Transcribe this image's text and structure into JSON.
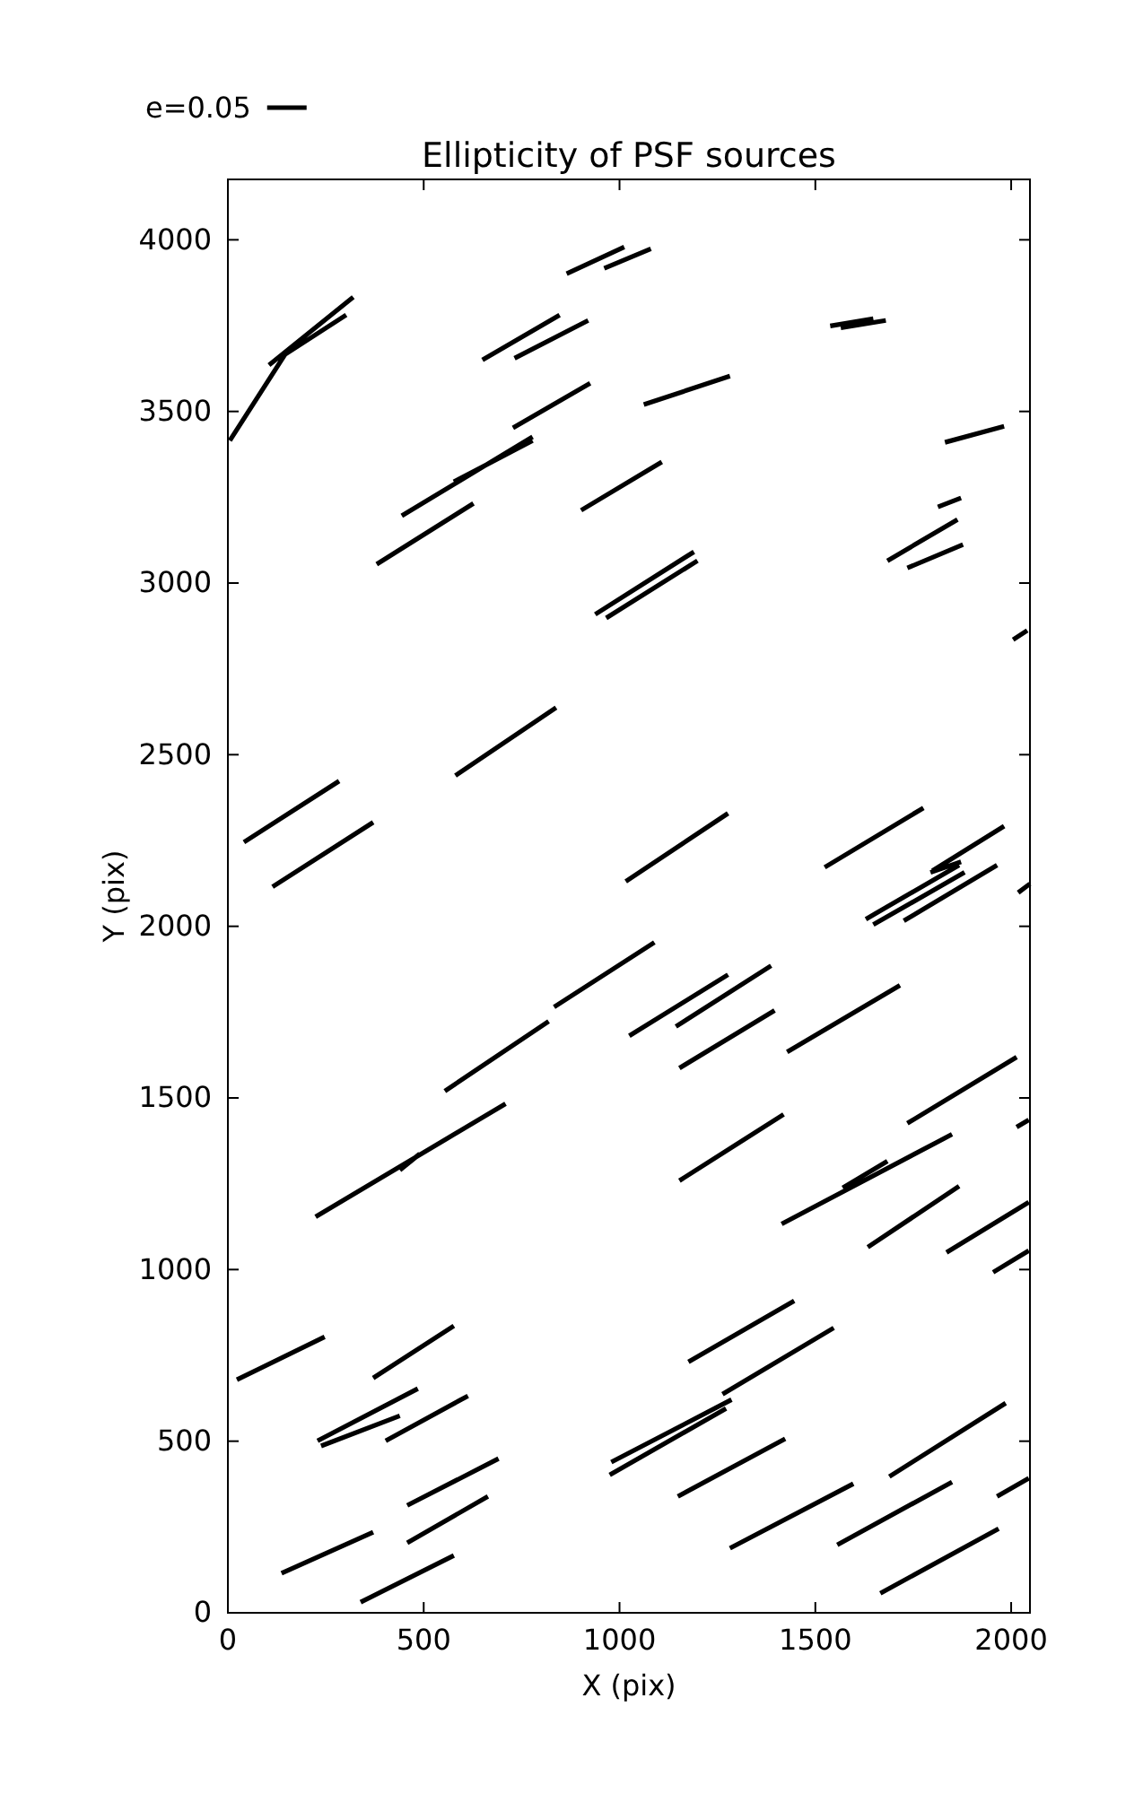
{
  "chart_data": {
    "type": "line",
    "title": "Ellipticity of PSF sources",
    "xlabel": "X (pix)",
    "ylabel": "Y (pix)",
    "xlim": [
      0,
      2048
    ],
    "xticks": [
      0,
      500,
      1000,
      1500,
      2000
    ],
    "ylim": [
      0,
      4176
    ],
    "yticks": [
      0,
      500,
      1000,
      1500,
      2000,
      2500,
      3000,
      3500,
      4000
    ],
    "grid": false,
    "legend": "top left",
    "marker": "none",
    "line_style": "solid",
    "series": [
      {
        "name": "e=0.05",
        "color": "#000000",
        "x": [
          5,
          146,
          null,
          105,
          320,
          null,
          146,
          302,
          null,
          865,
          1012,
          null,
          961,
          1080,
          null,
          650,
          847,
          null,
          732,
          920,
          null,
          1062,
          1282,
          null,
          728,
          925,
          null,
          444,
          778,
          null,
          577,
          778,
          null,
          380,
          627,
          null,
          902,
          1108,
          null,
          938,
          1190,
          null,
          966,
          1199,
          null,
          1538,
          1648,
          null,
          1565,
          1680,
          null,
          1831,
          1982,
          null,
          1813,
          1872,
          null,
          1684,
          1863,
          null,
          1735,
          1877,
          null,
          2005,
          2041,
          null,
          41,
          284,
          null,
          114,
          371,
          null,
          581,
          838,
          null,
          1016,
          1277,
          null,
          1524,
          1776,
          null,
          1794,
          1872,
          null,
          1799,
          1982,
          null,
          1629,
          1867,
          null,
          1648,
          1881,
          null,
          1726,
          1964,
          null,
          2018,
          2048,
          null,
          833,
          1089,
          null,
          554,
          819,
          null,
          1025,
          1277,
          null,
          1144,
          1387,
          null,
          1153,
          1396,
          null,
          1428,
          1716,
          null,
          1735,
          2014,
          null,
          2014,
          2045,
          null,
          224,
          709,
          null,
          439,
          490,
          null,
          1153,
          1419,
          null,
          1414,
          1849,
          null,
          1570,
          1684,
          null,
          1634,
          1867,
          null,
          1835,
          2045,
          null,
          1954,
          2045,
          null,
          23,
          247,
          null,
          371,
          577,
          null,
          229,
          485,
          null,
          238,
          439,
          null,
          403,
          613,
          null,
          458,
          691,
          null,
          458,
          664,
          null,
          137,
          371,
          null,
          339,
          577,
          null,
          1176,
          1446,
          null,
          1263,
          1547,
          null,
          979,
          1286,
          null,
          975,
          1272,
          null,
          1149,
          1423,
          null,
          1282,
          1597,
          null,
          1689,
          1986,
          null,
          1556,
          1849,
          null,
          1666,
          1968,
          null,
          1964,
          2045
        ],
        "values": [
          3415,
          3666,
          null,
          3635,
          3833,
          null,
          3666,
          3781,
          null,
          3901,
          3979,
          null,
          3917,
          3974,
          null,
          3650,
          3781,
          null,
          3655,
          3765,
          null,
          3520,
          3603,
          null,
          3452,
          3582,
          null,
          3196,
          3426,
          null,
          3295,
          3415,
          null,
          3055,
          3232,
          null,
          3212,
          3353,
          null,
          2909,
          3091,
          null,
          2898,
          3065,
          null,
          3749,
          3770,
          null,
          3744,
          3765,
          null,
          3410,
          3457,
          null,
          3222,
          3248,
          null,
          3065,
          3185,
          null,
          3044,
          3112,
          null,
          2835,
          2862,
          null,
          2245,
          2423,
          null,
          2115,
          2303,
          null,
          2439,
          2637,
          null,
          2131,
          2329,
          null,
          2172,
          2345,
          null,
          2157,
          2188,
          null,
          2162,
          2292,
          null,
          2021,
          2178,
          null,
          2005,
          2157,
          null,
          2016,
          2178,
          null,
          2098,
          2124,
          null,
          1765,
          1953,
          null,
          1520,
          1723,
          null,
          1681,
          1859,
          null,
          1708,
          1885,
          null,
          1587,
          1755,
          null,
          1634,
          1828,
          null,
          1426,
          1619,
          null,
          1415,
          1436,
          null,
          1154,
          1483,
          null,
          1290,
          1337,
          null,
          1259,
          1452,
          null,
          1133,
          1394,
          null,
          1238,
          1316,
          null,
          1065,
          1243,
          null,
          1050,
          1196,
          null,
          992,
          1055,
          null,
          679,
          804,
          null,
          684,
          836,
          null,
          501,
          653,
          null,
          486,
          574,
          null,
          501,
          632,
          null,
          313,
          449,
          null,
          204,
          339,
          null,
          115,
          235,
          null,
          31,
          167,
          null,
          731,
          909,
          null,
          637,
          830,
          null,
          439,
          621,
          null,
          402,
          595,
          null,
          339,
          507,
          null,
          188,
          376,
          null,
          397,
          611,
          null,
          198,
          381,
          null,
          57,
          245,
          null,
          339,
          392
        ]
      }
    ]
  }
}
